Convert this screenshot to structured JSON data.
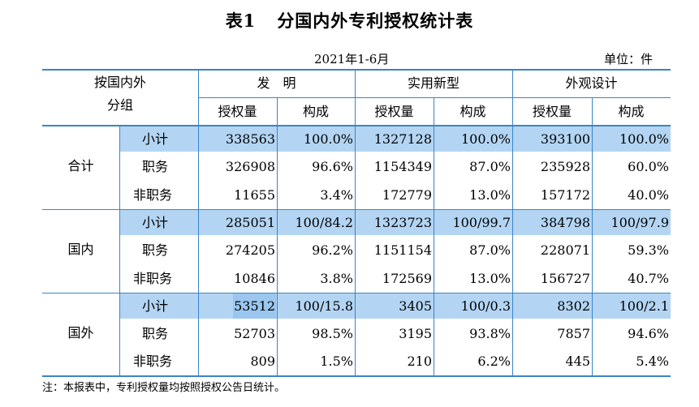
{
  "title": {
    "num": "表1",
    "text": "分国内外专利授权统计表"
  },
  "period": "2021年1-6月",
  "unit": "单位：件",
  "header": {
    "group_line1": "按国内外",
    "group_line2": "分组",
    "categories": [
      "发　明",
      "实用新型",
      "外观设计"
    ],
    "sub": [
      "授权量",
      "构成",
      "授权量",
      "构成",
      "授权量",
      "构成"
    ]
  },
  "groups": [
    {
      "name": "合计",
      "rows": [
        {
          "label": "小计",
          "values": [
            "338563",
            "100.0%",
            "1327128",
            "100.0%",
            "393100",
            "100.0%"
          ]
        },
        {
          "label": "职务",
          "values": [
            "326908",
            "96.6%",
            "1154349",
            "87.0%",
            "235928",
            "60.0%"
          ]
        },
        {
          "label": "非职务",
          "values": [
            "11655",
            "3.4%",
            "172779",
            "13.0%",
            "157172",
            "40.0%"
          ]
        }
      ]
    },
    {
      "name": "国内",
      "rows": [
        {
          "label": "小计",
          "values": [
            "285051",
            "100/84.2",
            "1323723",
            "100/99.7",
            "384798",
            "100/97.9"
          ]
        },
        {
          "label": "职务",
          "values": [
            "274205",
            "96.2%",
            "1151154",
            "87.0%",
            "228071",
            "59.3%"
          ]
        },
        {
          "label": "非职务",
          "values": [
            "10846",
            "3.8%",
            "172569",
            "13.0%",
            "156727",
            "40.7%"
          ]
        }
      ]
    },
    {
      "name": "国外",
      "rows": [
        {
          "label": "小计",
          "values": [
            "53512",
            "100/15.8",
            "3405",
            "100/0.3",
            "8302",
            "100/2.1"
          ]
        },
        {
          "label": "职务",
          "values": [
            "52703",
            "98.5%",
            "3195",
            "93.8%",
            "7857",
            "94.6%"
          ]
        },
        {
          "label": "非职务",
          "values": [
            "809",
            "1.5%",
            "210",
            "6.2%",
            "445",
            "5.4%"
          ]
        }
      ]
    }
  ],
  "note": "注：本报表中，专利授权量均按照授权公告日统计。",
  "colors": {
    "rule": "#3a84c9",
    "highlight": "#b3d5f3",
    "cell_highlight": "#9ac6ef"
  }
}
